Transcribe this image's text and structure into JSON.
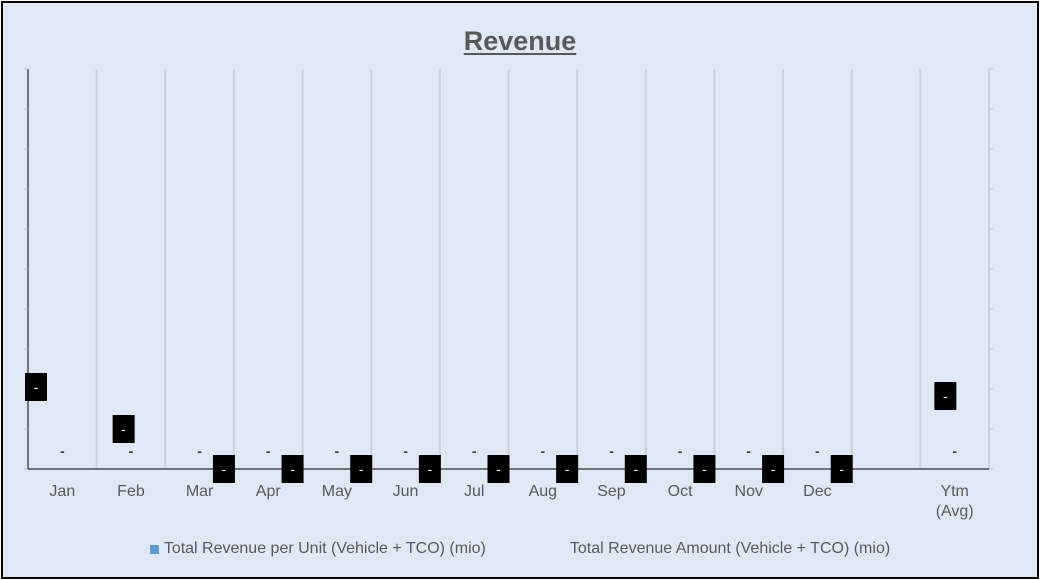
{
  "chart_data": {
    "type": "bar",
    "title": "Revenue",
    "categories": [
      "Jan",
      "Feb",
      "Mar",
      "Apr",
      "May",
      "Jun",
      "Jul",
      "Aug",
      "Sep",
      "Oct",
      "Nov",
      "Dec",
      "",
      "Ytm\n(Avg)"
    ],
    "series": [
      {
        "name": "Total Revenue per Unit  (Vehicle + TCO) (mio)",
        "color": "#5b9bd5",
        "values": [
          0,
          0,
          0,
          0,
          0,
          0,
          0,
          0,
          0,
          0,
          0,
          0,
          null,
          0
        ],
        "data_labels": [
          "-",
          "-",
          "-",
          "-",
          "-",
          "-",
          "-",
          "-",
          "-",
          "-",
          "-",
          "-",
          "",
          "-"
        ]
      },
      {
        "name": "Total Revenue Amount (Vehicle + TCO) (mio)",
        "color": "#dfe9f5",
        "values": [
          0,
          0,
          0,
          0,
          0,
          0,
          0,
          0,
          0,
          0,
          0,
          0,
          null,
          0
        ],
        "data_labels": [
          "-",
          "-",
          "-",
          "-",
          "-",
          "-",
          "-",
          "-",
          "-",
          "-",
          "-",
          "-",
          "",
          "-"
        ]
      }
    ],
    "grid": true,
    "legend_position": "bottom"
  }
}
